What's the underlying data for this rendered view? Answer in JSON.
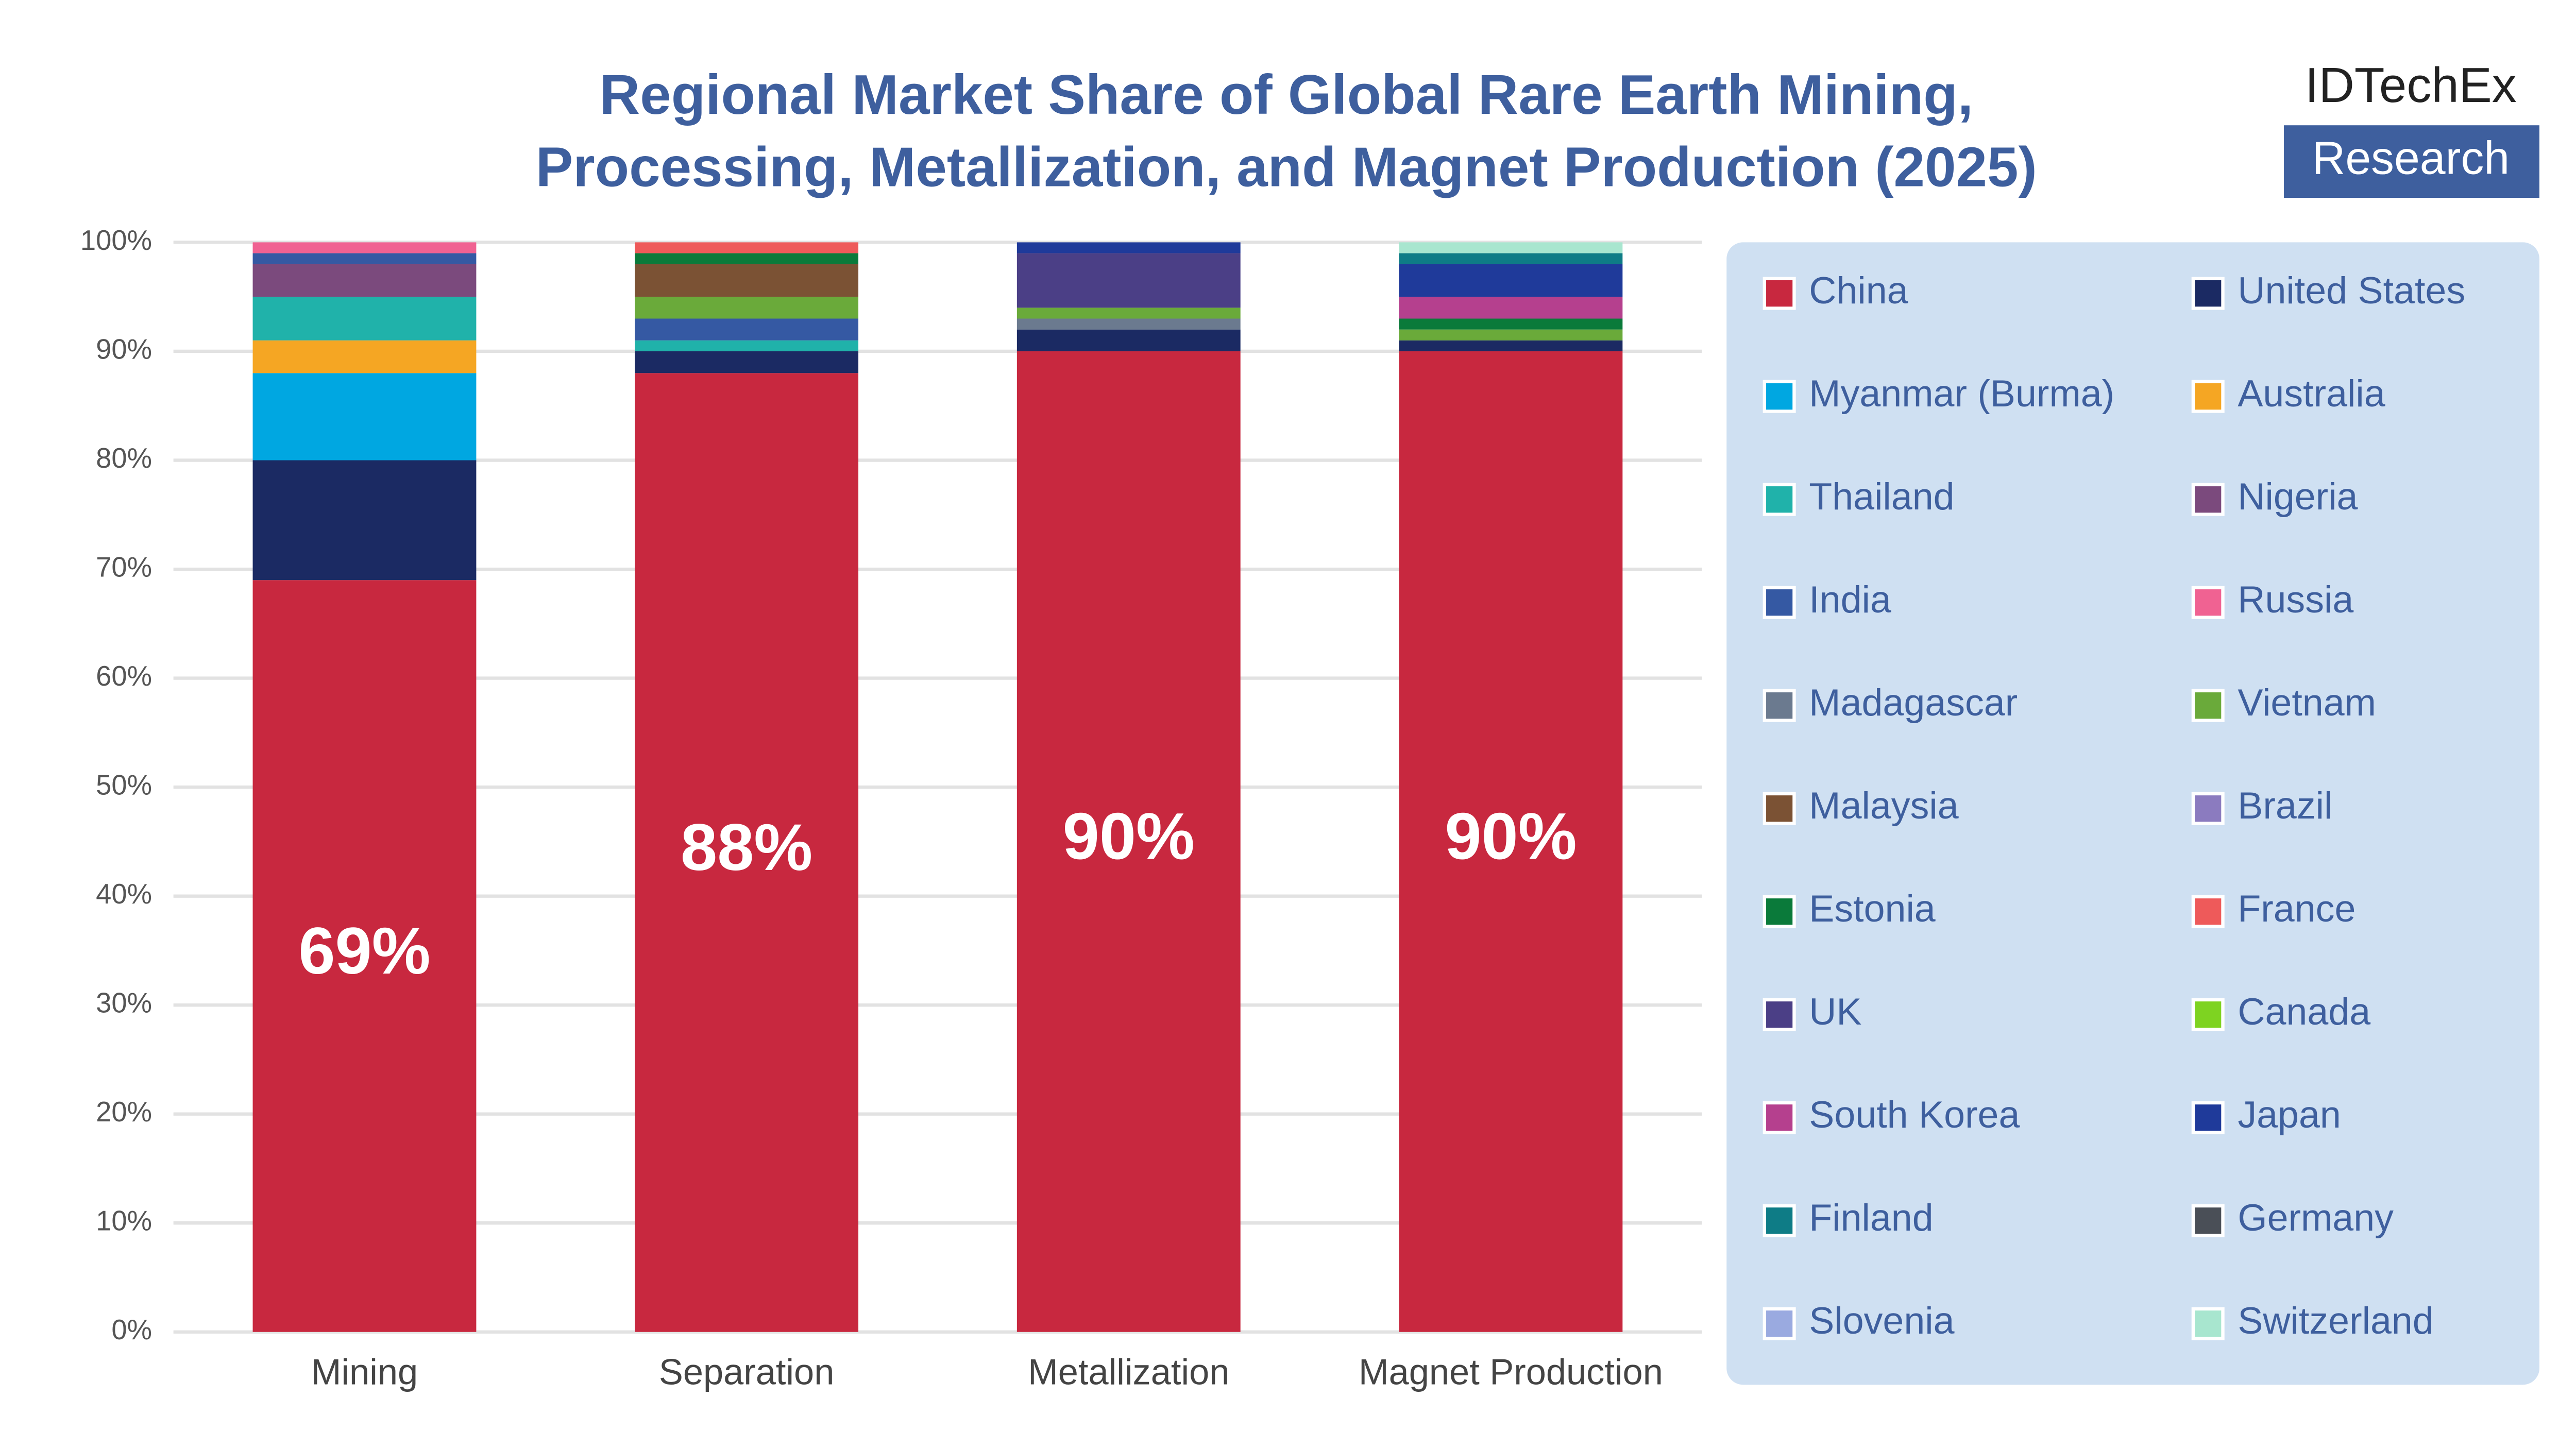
{
  "chart_data": {
    "type": "stacked_bar",
    "title": "Regional Market Share of Global Rare Earth Mining, Processing, Metallization, and Magnet Production (2025)",
    "categories": [
      "Mining",
      "Separation",
      "Metallization",
      "Magnet Production"
    ],
    "ylim": [
      0,
      100
    ],
    "yticks": [
      {
        "value": 0,
        "label": "0%"
      },
      {
        "value": 10,
        "label": "10%"
      },
      {
        "value": 20,
        "label": "20%"
      },
      {
        "value": 30,
        "label": "30%"
      },
      {
        "value": 40,
        "label": "40%"
      },
      {
        "value": 50,
        "label": "50%"
      },
      {
        "value": 60,
        "label": "60%"
      },
      {
        "value": 70,
        "label": "70%"
      },
      {
        "value": 80,
        "label": "80%"
      },
      {
        "value": 90,
        "label": "90%"
      },
      {
        "value": 100,
        "label": "100%"
      }
    ],
    "grid": true,
    "legend": "right",
    "series": [
      {
        "name": "China",
        "color": "#c8283f",
        "values": [
          69,
          88,
          90,
          90
        ],
        "value_labels": [
          "69%",
          "88%",
          "90%",
          "90%"
        ]
      },
      {
        "name": "United States",
        "color": "#1b2a63",
        "values": [
          11,
          2,
          2,
          1
        ]
      },
      {
        "name": "Myanmar (Burma)",
        "color": "#00a7e1",
        "values": [
          8,
          0,
          0,
          0
        ]
      },
      {
        "name": "Australia",
        "color": "#f5a623",
        "values": [
          3,
          0,
          0,
          0
        ]
      },
      {
        "name": "Thailand",
        "color": "#20b2aa",
        "values": [
          4,
          1,
          0,
          0
        ]
      },
      {
        "name": "Nigeria",
        "color": "#7b4a7d",
        "values": [
          3,
          0,
          0,
          0
        ]
      },
      {
        "name": "India",
        "color": "#3559a3",
        "values": [
          1,
          2,
          0,
          0
        ]
      },
      {
        "name": "Russia",
        "color": "#f06292",
        "values": [
          1,
          0,
          0,
          0
        ]
      },
      {
        "name": "Madagascar",
        "color": "#6b7a8f",
        "values": [
          0,
          0,
          1,
          0
        ]
      },
      {
        "name": "Vietnam",
        "color": "#6aaa3a",
        "values": [
          0,
          2,
          1,
          1
        ]
      },
      {
        "name": "Malaysia",
        "color": "#7b5234",
        "values": [
          0,
          3,
          0,
          0
        ]
      },
      {
        "name": "Brazil",
        "color": "#8b7bbf",
        "values": [
          0,
          0,
          0,
          0
        ]
      },
      {
        "name": "Estonia",
        "color": "#0a7a3a",
        "values": [
          0,
          1,
          0,
          1
        ]
      },
      {
        "name": "France",
        "color": "#ee5a5a",
        "values": [
          0,
          1,
          0,
          0
        ]
      },
      {
        "name": "UK",
        "color": "#4b3f86",
        "values": [
          0,
          0,
          5,
          0
        ]
      },
      {
        "name": "Canada",
        "color": "#7ed321",
        "values": [
          0,
          0,
          0,
          0
        ]
      },
      {
        "name": "South Korea",
        "color": "#b5408e",
        "values": [
          0,
          0,
          0,
          2
        ]
      },
      {
        "name": "Japan",
        "color": "#1f3a9a",
        "values": [
          0,
          0,
          1,
          3
        ]
      },
      {
        "name": "Finland",
        "color": "#0e7c86",
        "values": [
          0,
          0,
          0,
          1
        ]
      },
      {
        "name": "Germany",
        "color": "#4a4f57",
        "values": [
          0,
          0,
          0,
          0
        ]
      },
      {
        "name": "Slovenia",
        "color": "#9aaae0",
        "values": [
          0,
          0,
          0,
          0
        ]
      },
      {
        "name": "Switzerland",
        "color": "#a8e6cf",
        "values": [
          0,
          0,
          0,
          1
        ]
      }
    ]
  },
  "logo": {
    "name": "IDTechEx",
    "tag": "Research"
  }
}
